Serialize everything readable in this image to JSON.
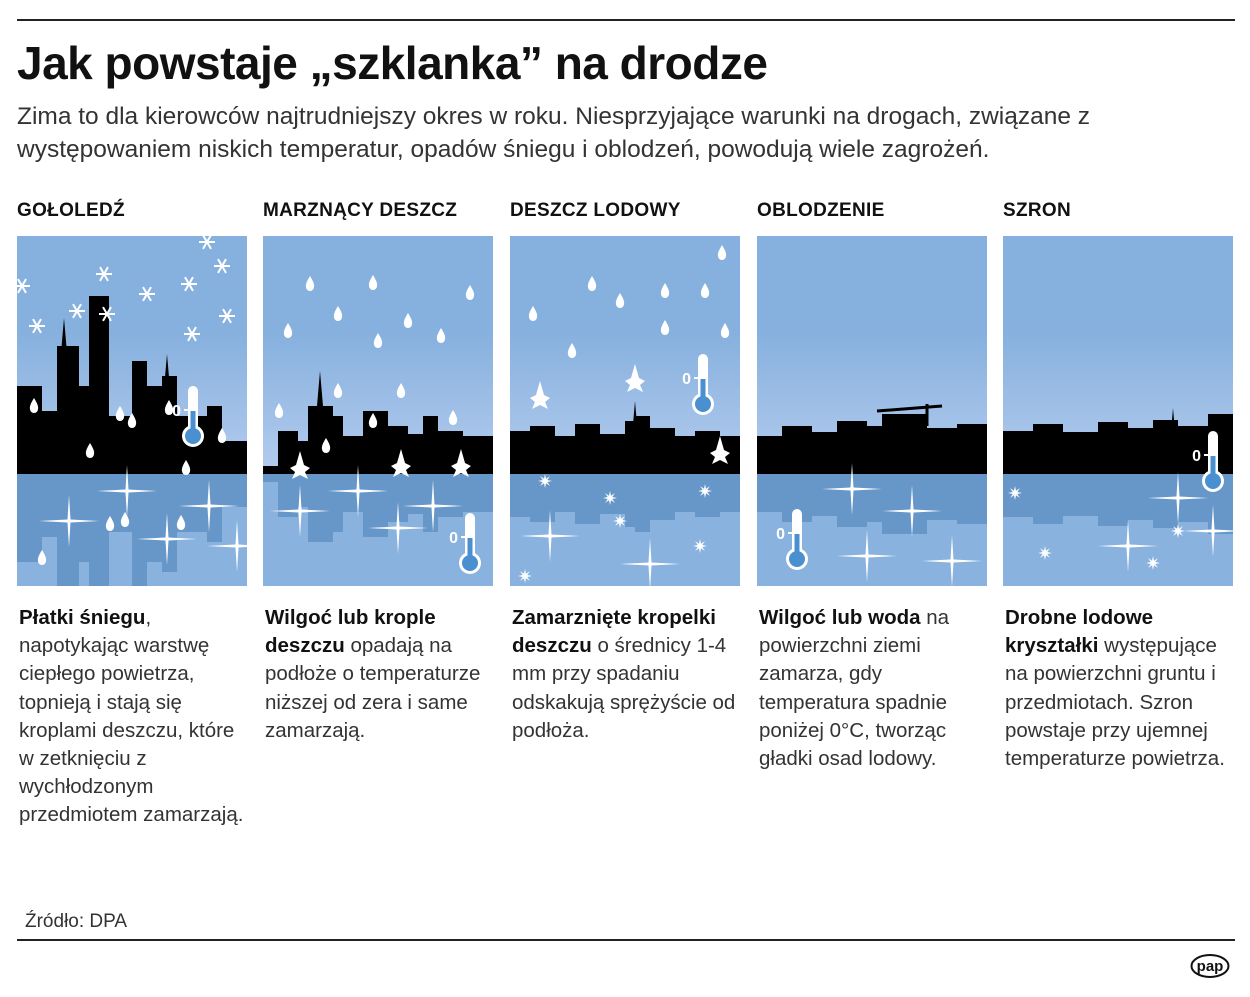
{
  "title": "Jak powstaje „szklanka” na drodze",
  "subtitle": "Zima to dla kierowców najtrudniejszy okres w roku. Niesprzyjające warunki na drogach, związane z występowaniem niskich temperatur, opadów śniegu i oblodzeń, powodują wiele zagrożeń.",
  "thermometer_label": "0",
  "panels": [
    {
      "heading": "GOŁOLEDŹ",
      "lead": "Płatki śniegu",
      "body": ", napotykając warstwę ciepłego powietrza, topnieją i stają się kroplami deszczu, które w zetknięciu z wychłodzonym przedmiotem zamarzają."
    },
    {
      "heading": "MARZNĄCY DESZCZ",
      "lead": "Wilgoć lub krople deszczu",
      "body": " opadają na podłoże o temperaturze niższej od zera i same zamarzają."
    },
    {
      "heading": "DESZCZ LODOWY",
      "lead": "Zamarznięte kropelki deszczu",
      "body": " o średnicy 1-4 mm przy spadaniu odskakują sprężyście od podłoża."
    },
    {
      "heading": "OBLODZENIE",
      "lead": "Wilgoć lub woda",
      "body": " na powierzchni ziemi zamarza, gdy temperatura spadnie poniżej 0°C, tworząc gładki osad lodowy."
    },
    {
      "heading": "SZRON",
      "lead": "Drobne lodowe kryształki",
      "body": " występujące na powierzchni gruntu i przedmiotach. Szron powstaje przy ujemnej temperaturze powietrza."
    }
  ],
  "source": "Źródło: DPA",
  "logo_text": "pap",
  "colors": {
    "sky": "#86b0de",
    "horizon": "#b4ccee",
    "water": "#8ab2df",
    "reflection": "#5b8ec2",
    "skyline": "#000000"
  }
}
